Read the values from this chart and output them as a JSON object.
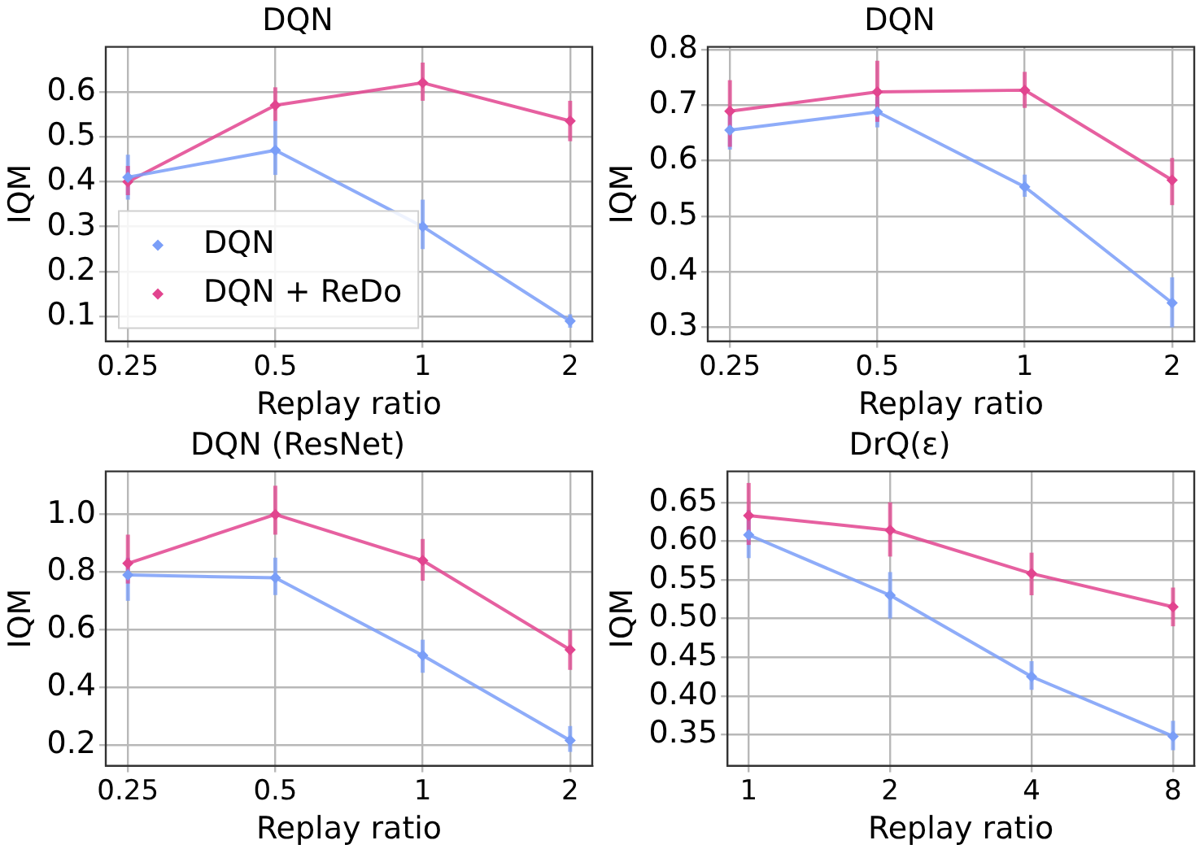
{
  "chart_data": [
    {
      "type": "line",
      "title": "DQN",
      "xlabel": "Replay ratio",
      "ylabel": "IQM",
      "categories": [
        "0.25",
        "0.5",
        "1",
        "2"
      ],
      "ylim": [
        0.045,
        0.7
      ],
      "yticks": [
        0.1,
        0.2,
        0.3,
        0.4,
        0.5,
        0.6
      ],
      "grid": true,
      "legend": "bottom left",
      "marker": "diamond",
      "series": [
        {
          "name": "DQN",
          "color": "#7a9ef8",
          "values": [
            0.41,
            0.47,
            0.3,
            0.09
          ],
          "errors": [
            [
              0.36,
              0.46
            ],
            [
              0.415,
              0.535
            ],
            [
              0.25,
              0.36
            ],
            [
              0.075,
              0.105
            ]
          ]
        },
        {
          "name": "DQN + ReDo",
          "color": "#e2448f",
          "values": [
            0.4,
            0.57,
            0.62,
            0.535
          ],
          "errors": [
            [
              0.37,
              0.435
            ],
            [
              0.535,
              0.61
            ],
            [
              0.58,
              0.665
            ],
            [
              0.49,
              0.58
            ]
          ]
        }
      ]
    },
    {
      "type": "line",
      "title": "DQN",
      "xlabel": "Replay ratio",
      "ylabel": "IQM",
      "categories": [
        "0.25",
        "0.5",
        "1",
        "2"
      ],
      "ylim": [
        0.275,
        0.805
      ],
      "yticks": [
        0.3,
        0.4,
        0.5,
        0.6,
        0.7,
        0.8
      ],
      "grid": true,
      "marker": "diamond",
      "series": [
        {
          "color": "#7a9ef8",
          "values": [
            0.655,
            0.688,
            0.553,
            0.344
          ],
          "errors": [
            [
              0.62,
              0.69
            ],
            [
              0.66,
              0.715
            ],
            [
              0.535,
              0.575
            ],
            [
              0.3,
              0.39
            ]
          ]
        },
        {
          "color": "#e2448f",
          "values": [
            0.689,
            0.724,
            0.727,
            0.565
          ],
          "errors": [
            [
              0.625,
              0.745
            ],
            [
              0.67,
              0.78
            ],
            [
              0.695,
              0.76
            ],
            [
              0.52,
              0.605
            ]
          ]
        }
      ]
    },
    {
      "type": "line",
      "title": "DQN (ResNet)",
      "xlabel": "Replay ratio",
      "ylabel": "IQM",
      "categories": [
        "0.25",
        "0.5",
        "1",
        "2"
      ],
      "ylim": [
        0.127,
        1.15
      ],
      "yticks": [
        0.2,
        0.4,
        0.6,
        0.8,
        {
          "value": 1.0,
          "label": "1.0"
        }
      ],
      "grid": true,
      "marker": "diamond",
      "series": [
        {
          "color": "#7a9ef8",
          "values": [
            0.79,
            0.78,
            0.51,
            0.215
          ],
          "errors": [
            [
              0.7,
              0.85
            ],
            [
              0.72,
              0.85
            ],
            [
              0.45,
              0.565
            ],
            [
              0.175,
              0.265
            ]
          ]
        },
        {
          "color": "#e2448f",
          "values": [
            0.83,
            1.0,
            0.84,
            0.53
          ],
          "errors": [
            [
              0.76,
              0.93
            ],
            [
              0.93,
              1.1
            ],
            [
              0.77,
              0.915
            ],
            [
              0.46,
              0.6
            ]
          ]
        }
      ]
    },
    {
      "type": "line",
      "title": "DrQ(ε)",
      "xlabel": "Replay ratio",
      "ylabel": "IQM",
      "categories": [
        "1",
        "2",
        "4",
        "8"
      ],
      "ylim": [
        0.31,
        0.69
      ],
      "yticks": [
        0.35,
        {
          "value": 0.4,
          "label": "0.40"
        },
        0.45,
        {
          "value": 0.5,
          "label": "0.50"
        },
        0.55,
        {
          "value": 0.6,
          "label": "0.60"
        },
        0.65
      ],
      "grid": true,
      "marker": "diamond",
      "series": [
        {
          "color": "#7a9ef8",
          "values": [
            0.608,
            0.53,
            0.425,
            0.348
          ],
          "errors": [
            [
              0.578,
              0.64
            ],
            [
              0.5,
              0.56
            ],
            [
              0.408,
              0.445
            ],
            [
              0.33,
              0.368
            ]
          ]
        },
        {
          "color": "#e2448f",
          "values": [
            0.633,
            0.614,
            0.558,
            0.515
          ],
          "errors": [
            [
              0.595,
              0.675
            ],
            [
              0.58,
              0.65
            ],
            [
              0.53,
              0.585
            ],
            [
              0.49,
              0.54
            ]
          ]
        }
      ]
    }
  ]
}
